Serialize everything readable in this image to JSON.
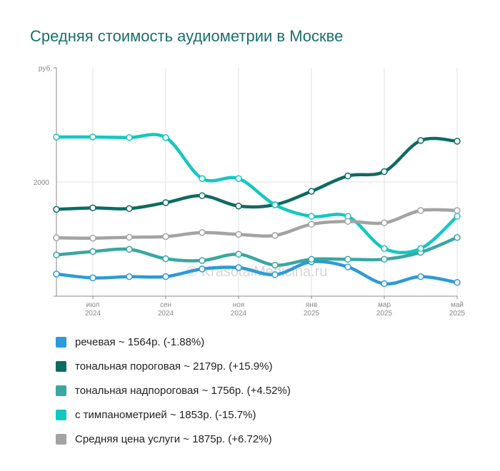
{
  "chart_data": {
    "type": "line",
    "title": "Средняя стоимость аудиометрии в Москве",
    "ylabel": "руб.",
    "y_ticks": [
      {
        "value": 2000,
        "label": "2000"
      }
    ],
    "ylim": [
      1000,
      3000
    ],
    "watermark": "© KrasotaiMedicina.ru",
    "x_labels": [
      {
        "x": 1,
        "month": "июл",
        "year": "2024"
      },
      {
        "x": 3,
        "month": "сен",
        "year": "2024"
      },
      {
        "x": 5,
        "month": "ноя",
        "year": "2024"
      },
      {
        "x": 7,
        "month": "янв",
        "year": "2025"
      },
      {
        "x": 9,
        "month": "мар",
        "year": "2025"
      },
      {
        "x": 11,
        "month": "май",
        "year": "2025"
      }
    ],
    "series": [
      {
        "name": "речевая",
        "color": "#2d9ad9",
        "values": [
          1194,
          1160,
          1171,
          1171,
          1238,
          1250,
          1188,
          1301,
          1256,
          1109,
          1171,
          1120
        ],
        "summary": "~ 1564р. (-1.88%)"
      },
      {
        "name": "тональная пороговая",
        "color": "#0d6b63",
        "values": [
          1760,
          1773,
          1767,
          1819,
          1880,
          1789,
          1801,
          1918,
          2053,
          2091,
          2363,
          2357
        ],
        "summary": "~ 2179р. (+15.9%)"
      },
      {
        "name": "тональная надпороговая",
        "color": "#3aa7a1",
        "values": [
          1361,
          1391,
          1410,
          1328,
          1312,
          1367,
          1272,
          1323,
          1323,
          1323,
          1384,
          1514
        ],
        "summary": "~ 1756р. (+4.52%)"
      },
      {
        "name": "с тимпанометрией",
        "color": "#14c8c0",
        "values": [
          2394,
          2394,
          2389,
          2389,
          2030,
          2030,
          1800,
          1699,
          1699,
          1417,
          1417,
          1699
        ],
        "summary": "~ 1853р. (-15.7%)"
      },
      {
        "name": "Средняя цена услуги",
        "color": "#a3a3a3",
        "values": [
          1511,
          1508,
          1516,
          1522,
          1557,
          1541,
          1532,
          1630,
          1655,
          1642,
          1750,
          1750
        ],
        "summary": "~ 1875р. (+6.72%)"
      }
    ]
  }
}
